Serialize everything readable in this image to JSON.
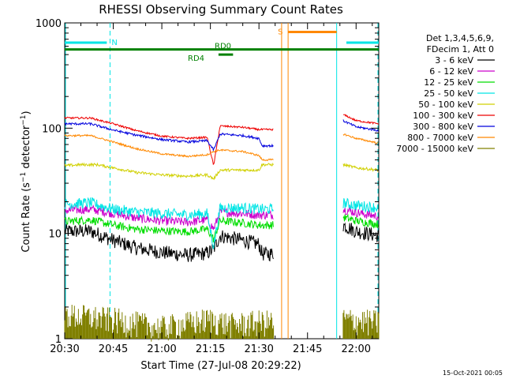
{
  "chart_data": {
    "type": "line",
    "title": "RHESSI Observing Summary Count Rates",
    "xlabel": "Start Time (27-Jul-08 20:29:22)",
    "ylabel": "Count Rate (s⁻¹ detector⁻¹)",
    "ylabel_parts": {
      "base": "Count Rate (s",
      "sup1": "−1",
      "mid": " detector",
      "sup2": "−1",
      "end": ")"
    },
    "y_scale": "log",
    "ylim": [
      1,
      1000
    ],
    "xlim_minutes": [
      0,
      97
    ],
    "x_ticks": [
      {
        "label": "20:30",
        "t": 0
      },
      {
        "label": "20:45",
        "t": 15
      },
      {
        "label": "21:00",
        "t": 30
      },
      {
        "label": "21:15",
        "t": 45
      },
      {
        "label": "21:30",
        "t": 60
      },
      {
        "label": "21:45",
        "t": 75
      },
      {
        "label": "22:00",
        "t": 90
      }
    ],
    "y_ticks": [
      {
        "label": "1",
        "v": 1
      },
      {
        "label": "10",
        "v": 10
      },
      {
        "label": "100",
        "v": 100
      },
      {
        "label": "1000",
        "v": 1000
      }
    ],
    "legend": {
      "placement": "right",
      "header": [
        "Det 1,3,4,5,6,9,",
        "FDecim 1, Att 0"
      ]
    },
    "series": [
      {
        "name": "3 - 6 keV",
        "color": "#000000",
        "values": [
          [
            0,
            10.5
          ],
          [
            8,
            10.5
          ],
          [
            15,
            8.6
          ],
          [
            22,
            7.3
          ],
          [
            30,
            6.6
          ],
          [
            38,
            6.2
          ],
          [
            44,
            6.5
          ],
          [
            46,
            7.1
          ],
          [
            48,
            9.5
          ],
          [
            55,
            8.6
          ],
          [
            60,
            7.9
          ],
          [
            61,
            6.4
          ],
          [
            64.5,
            6.4
          ],
          [
            86,
            12.0
          ],
          [
            90,
            10.5
          ],
          [
            97,
            9.5
          ]
        ]
      },
      {
        "name": "6 - 12 keV",
        "color": "#cc00cc",
        "values": [
          [
            0,
            16.5
          ],
          [
            8,
            17.0
          ],
          [
            15,
            15.5
          ],
          [
            22,
            14.0
          ],
          [
            30,
            13.2
          ],
          [
            38,
            12.8
          ],
          [
            44,
            13.5
          ],
          [
            46,
            11.0
          ],
          [
            48,
            16.0
          ],
          [
            55,
            15.5
          ],
          [
            60,
            15.0
          ],
          [
            64.5,
            15.0
          ],
          [
            86,
            17.0
          ],
          [
            90,
            15.8
          ],
          [
            97,
            14.5
          ]
        ]
      },
      {
        "name": "12 - 25 keV",
        "color": "#00dd00",
        "values": [
          [
            0,
            13.0
          ],
          [
            8,
            13.5
          ],
          [
            15,
            12.0
          ],
          [
            22,
            11.0
          ],
          [
            30,
            10.6
          ],
          [
            38,
            10.4
          ],
          [
            44,
            11.0
          ],
          [
            46,
            8.8
          ],
          [
            48,
            13.2
          ],
          [
            55,
            12.6
          ],
          [
            60,
            12.0
          ],
          [
            64.5,
            12.0
          ],
          [
            86,
            14.2
          ],
          [
            90,
            13.2
          ],
          [
            97,
            12.2
          ]
        ]
      },
      {
        "name": "25 - 50 keV",
        "color": "#00e5e5",
        "values": [
          [
            0,
            19.0
          ],
          [
            8,
            19.5
          ],
          [
            15,
            17.0
          ],
          [
            22,
            16.0
          ],
          [
            30,
            15.5
          ],
          [
            38,
            15.0
          ],
          [
            44,
            15.5
          ],
          [
            46,
            7.5
          ],
          [
            48,
            17.5
          ],
          [
            55,
            17.5
          ],
          [
            60,
            17.0
          ],
          [
            64.5,
            17.0
          ],
          [
            86,
            19.5
          ],
          [
            90,
            18.5
          ],
          [
            97,
            17.5
          ]
        ]
      },
      {
        "name": "50 - 100 keV",
        "color": "#d0d000",
        "values": [
          [
            0,
            44
          ],
          [
            5,
            45
          ],
          [
            10,
            45
          ],
          [
            15,
            42
          ],
          [
            22,
            38
          ],
          [
            30,
            36
          ],
          [
            38,
            35
          ],
          [
            44,
            36
          ],
          [
            46,
            33
          ],
          [
            48,
            40
          ],
          [
            55,
            40
          ],
          [
            60,
            40
          ],
          [
            61,
            45
          ],
          [
            64.5,
            45
          ],
          [
            86,
            45
          ],
          [
            90,
            42
          ],
          [
            97,
            40
          ]
        ]
      },
      {
        "name": "100 - 300 keV",
        "color": "#ee0000",
        "values": [
          [
            0,
            125
          ],
          [
            8,
            125
          ],
          [
            15,
            110
          ],
          [
            22,
            95
          ],
          [
            30,
            84
          ],
          [
            38,
            80
          ],
          [
            44,
            82
          ],
          [
            46,
            44
          ],
          [
            48,
            105
          ],
          [
            55,
            102
          ],
          [
            60,
            97
          ],
          [
            64.5,
            97
          ],
          [
            86,
            135
          ],
          [
            90,
            118
          ],
          [
            97,
            110
          ]
        ]
      },
      {
        "name": "300 - 800 keV",
        "color": "#0000dd",
        "values": [
          [
            0,
            110
          ],
          [
            8,
            110
          ],
          [
            15,
            96
          ],
          [
            22,
            86
          ],
          [
            30,
            78
          ],
          [
            38,
            74
          ],
          [
            44,
            76
          ],
          [
            46,
            62
          ],
          [
            48,
            88
          ],
          [
            55,
            85
          ],
          [
            60,
            80
          ],
          [
            61,
            68
          ],
          [
            64.5,
            68
          ],
          [
            86,
            118
          ],
          [
            90,
            103
          ],
          [
            97,
            95
          ]
        ]
      },
      {
        "name": "800 - 7000 keV",
        "color": "#ff8800",
        "values": [
          [
            0,
            85
          ],
          [
            8,
            85
          ],
          [
            15,
            74
          ],
          [
            22,
            64
          ],
          [
            30,
            57
          ],
          [
            38,
            54
          ],
          [
            44,
            56
          ],
          [
            46,
            60
          ],
          [
            48,
            62
          ],
          [
            55,
            60
          ],
          [
            60,
            55
          ],
          [
            61,
            50
          ],
          [
            64.5,
            50
          ],
          [
            86,
            88
          ],
          [
            90,
            80
          ],
          [
            97,
            72
          ]
        ]
      },
      {
        "name": "7000 - 15000 keV",
        "color": "#808000",
        "values": [
          [
            0,
            2.0
          ],
          [
            15,
            1.8
          ],
          [
            30,
            1.5
          ],
          [
            45,
            1.8
          ],
          [
            52,
            1.6
          ],
          [
            60,
            1.7
          ],
          [
            64.5,
            1.7
          ],
          [
            86,
            1.8
          ],
          [
            97,
            1.7
          ]
        ]
      }
    ],
    "annotations": [
      {
        "label": "N",
        "color": "#00e5e5",
        "t_start": 0,
        "t_end": 13,
        "t_end2": 87,
        "t_end3": 97,
        "level": 650
      },
      {
        "label": "S",
        "color": "#ff8800",
        "t_start": 69,
        "t_end": 84,
        "level": 820
      },
      {
        "label": "RD0",
        "color": "#008000",
        "t_start": 0,
        "t_end": 97,
        "level": 560
      },
      {
        "label": "RD4",
        "color": "#008000",
        "t_start": 47.5,
        "t_end": 52,
        "level": 500
      }
    ],
    "vertical_markers": [
      {
        "t": 0,
        "color": "#00e5e5",
        "style": "solid"
      },
      {
        "t": 14,
        "color": "#00e5e5",
        "style": "dashed"
      },
      {
        "t": 67,
        "color": "#ff8800",
        "style": "solid"
      },
      {
        "t": 69,
        "color": "#ff8800",
        "style": "solid"
      },
      {
        "t": 84,
        "color": "#00e5e5",
        "style": "solid"
      },
      {
        "t": 98,
        "color": "#00e5e5",
        "style": "dashed"
      }
    ],
    "gaps_minutes": [
      [
        64.5,
        86
      ]
    ],
    "footer_stamp": "15-Oct-2021 00:05"
  }
}
